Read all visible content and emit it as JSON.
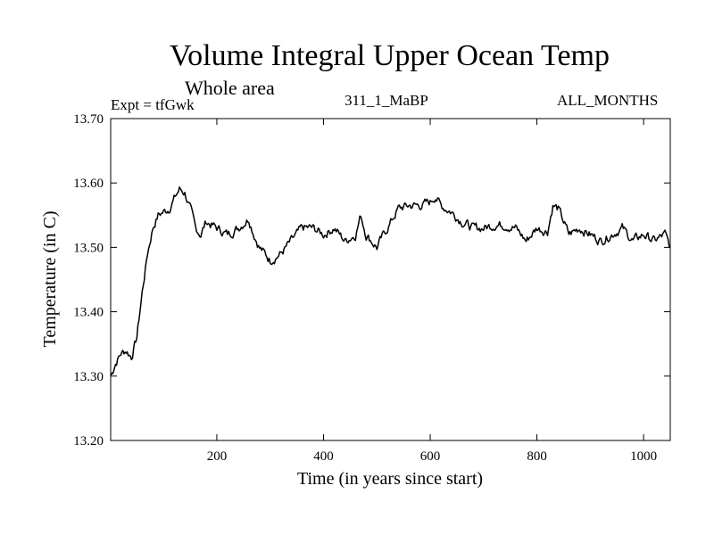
{
  "header": {
    "title": "Volume Integral Upper Ocean Temp",
    "subtitle": "Whole area",
    "expt_label": "Expt = tfGwk",
    "run_label": "311_1_MaBP",
    "months_label": "ALL_MONTHS"
  },
  "chart_data": {
    "type": "line",
    "title": "Volume Integral Upper Ocean Temp",
    "xlabel": "Time (in years since start)",
    "ylabel": "Temperature (in C)",
    "xlim": [
      1,
      1050
    ],
    "ylim": [
      13.2,
      13.7
    ],
    "xticks": [
      200,
      400,
      600,
      800,
      1000
    ],
    "yticks": [
      13.2,
      13.3,
      13.4,
      13.5,
      13.6,
      13.7
    ],
    "ytick_labels": [
      "13.20",
      "13.30",
      "13.40",
      "13.50",
      "13.60",
      "13.70"
    ],
    "grid": false,
    "line_color": "#000000",
    "series": [
      {
        "name": "Volume Integral Upper Ocean Temp",
        "x": [
          1,
          10,
          20,
          30,
          40,
          50,
          60,
          70,
          80,
          90,
          100,
          110,
          120,
          130,
          140,
          150,
          160,
          170,
          180,
          200,
          220,
          240,
          260,
          270,
          280,
          300,
          320,
          340,
          360,
          380,
          400,
          420,
          440,
          460,
          470,
          480,
          500,
          520,
          540,
          560,
          580,
          600,
          610,
          620,
          640,
          660,
          680,
          700,
          720,
          740,
          760,
          780,
          800,
          820,
          830,
          840,
          860,
          880,
          900,
          920,
          940,
          960,
          980,
          1000,
          1020,
          1040,
          1050
        ],
        "values": [
          13.3,
          13.32,
          13.335,
          13.34,
          13.33,
          13.36,
          13.43,
          13.49,
          13.53,
          13.55,
          13.555,
          13.56,
          13.575,
          13.59,
          13.585,
          13.56,
          13.53,
          13.52,
          13.54,
          13.53,
          13.52,
          13.53,
          13.545,
          13.52,
          13.5,
          13.48,
          13.49,
          13.51,
          13.53,
          13.53,
          13.52,
          13.53,
          13.51,
          13.52,
          13.55,
          13.52,
          13.5,
          13.53,
          13.56,
          13.565,
          13.565,
          13.57,
          13.58,
          13.565,
          13.555,
          13.54,
          13.53,
          13.53,
          13.535,
          13.535,
          13.53,
          13.51,
          13.53,
          13.525,
          13.565,
          13.56,
          13.52,
          13.53,
          13.52,
          13.51,
          13.52,
          13.53,
          13.51,
          13.52,
          13.51,
          13.52,
          13.5
        ]
      }
    ]
  }
}
